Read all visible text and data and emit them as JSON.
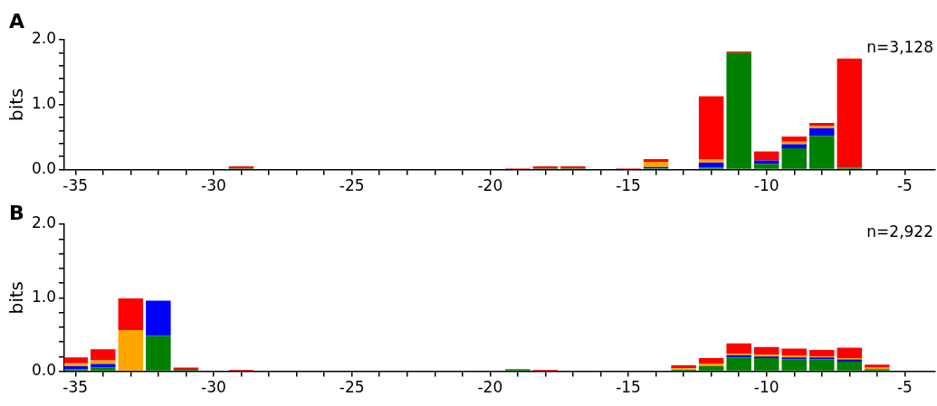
{
  "chart_data": [
    {
      "type": "bar",
      "title": "A",
      "ylabel": "bits",
      "stacked": true,
      "annotations": [
        "n=3,128"
      ],
      "x": [
        -35,
        -34,
        -33,
        -32,
        -31,
        -30,
        -29,
        -28,
        -27,
        -26,
        -25,
        -24,
        -23,
        -22,
        -21,
        -20,
        -19,
        -18,
        -17,
        -16,
        -15,
        -14,
        -13,
        -12,
        -11,
        -10,
        -9,
        -8,
        -7,
        -6,
        -5
      ],
      "xlim": [
        -35.4,
        -3.9
      ],
      "ylim": [
        0,
        2
      ],
      "xticks": [
        -35,
        {
          "value": -34,
          "label": null
        },
        {
          "value": -33,
          "label": null
        },
        {
          "value": -32,
          "label": null
        },
        {
          "value": -31,
          "label": null
        },
        -30,
        {
          "value": -29,
          "label": null
        },
        {
          "value": -28,
          "label": null
        },
        {
          "value": -27,
          "label": null
        },
        {
          "value": -26,
          "label": null
        },
        -25,
        {
          "value": -24,
          "label": null
        },
        {
          "value": -23,
          "label": null
        },
        {
          "value": -22,
          "label": null
        },
        {
          "value": -21,
          "label": null
        },
        -20,
        {
          "value": -19,
          "label": null
        },
        {
          "value": -18,
          "label": null
        },
        {
          "value": -17,
          "label": null
        },
        {
          "value": -16,
          "label": null
        },
        -15,
        {
          "value": -14,
          "label": null
        },
        {
          "value": -13,
          "label": null
        },
        {
          "value": -12,
          "label": null
        },
        {
          "value": -11,
          "label": null
        },
        -10,
        {
          "value": -9,
          "label": null
        },
        {
          "value": -8,
          "label": null
        },
        {
          "value": -7,
          "label": null
        },
        {
          "value": -6,
          "label": null
        },
        -5
      ],
      "yticks": [
        {
          "value": 0,
          "label": "0.0"
        },
        {
          "value": 0.2,
          "label": null
        },
        {
          "value": 0.4,
          "label": null
        },
        {
          "value": 0.6,
          "label": null
        },
        {
          "value": 0.8,
          "label": null
        },
        {
          "value": 1,
          "label": "1.0"
        },
        {
          "value": 1.2,
          "label": null
        },
        {
          "value": 1.4,
          "label": null
        },
        {
          "value": 1.6,
          "label": null
        },
        {
          "value": 1.8,
          "label": null
        },
        {
          "value": 2,
          "label": "2.0"
        }
      ],
      "series": [
        {
          "color": "#008000",
          "values": [
            0,
            0,
            0,
            0,
            0,
            0,
            0.02,
            0,
            0,
            0,
            0,
            0,
            0,
            0,
            0,
            0,
            0,
            0.02,
            0.02,
            0,
            0,
            0.02,
            0,
            0.03,
            1.8,
            0.09,
            0.33,
            0.52,
            0.03,
            0,
            0
          ]
        },
        {
          "color": "#0000ff",
          "values": [
            0,
            0,
            0,
            0,
            0,
            0,
            0,
            0,
            0,
            0,
            0,
            0,
            0,
            0,
            0,
            0,
            0,
            0,
            0,
            0,
            0,
            0.02,
            0,
            0.08,
            0,
            0.05,
            0.06,
            0.12,
            0,
            0,
            0
          ]
        },
        {
          "color": "#ffa500",
          "values": [
            0,
            0,
            0,
            0,
            0,
            0,
            0,
            0,
            0,
            0,
            0,
            0,
            0,
            0,
            0,
            0,
            0,
            0,
            0,
            0,
            0,
            0.08,
            0,
            0.05,
            0,
            0,
            0.04,
            0.03,
            0,
            0,
            0
          ]
        },
        {
          "color": "#ff0000",
          "values": [
            0,
            0,
            0,
            0,
            0,
            0,
            0.03,
            0,
            0,
            0,
            0,
            0,
            0,
            0,
            0,
            0,
            0.02,
            0.03,
            0.03,
            0,
            0.02,
            0.04,
            0,
            0.97,
            0.02,
            0.14,
            0.08,
            0.05,
            1.68,
            0,
            0
          ]
        }
      ]
    },
    {
      "type": "bar",
      "title": "B",
      "ylabel": "bits",
      "stacked": true,
      "annotations": [
        "n=2,922"
      ],
      "x": [
        -35,
        -34,
        -33,
        -32,
        -31,
        -30,
        -29,
        -28,
        -27,
        -26,
        -25,
        -24,
        -23,
        -22,
        -21,
        -20,
        -19,
        -18,
        -17,
        -16,
        -15,
        -14,
        -13,
        -12,
        -11,
        -10,
        -9,
        -8,
        -7,
        -6,
        -5
      ],
      "xlim": [
        -35.4,
        -3.9
      ],
      "ylim": [
        0,
        2
      ],
      "xticks": [
        -35,
        {
          "value": -34,
          "label": null
        },
        {
          "value": -33,
          "label": null
        },
        {
          "value": -32,
          "label": null
        },
        {
          "value": -31,
          "label": null
        },
        -30,
        {
          "value": -29,
          "label": null
        },
        {
          "value": -28,
          "label": null
        },
        {
          "value": -27,
          "label": null
        },
        {
          "value": -26,
          "label": null
        },
        -25,
        {
          "value": -24,
          "label": null
        },
        {
          "value": -23,
          "label": null
        },
        {
          "value": -22,
          "label": null
        },
        {
          "value": -21,
          "label": null
        },
        -20,
        {
          "value": -19,
          "label": null
        },
        {
          "value": -18,
          "label": null
        },
        {
          "value": -17,
          "label": null
        },
        {
          "value": -16,
          "label": null
        },
        -15,
        {
          "value": -14,
          "label": null
        },
        {
          "value": -13,
          "label": null
        },
        {
          "value": -12,
          "label": null
        },
        {
          "value": -11,
          "label": null
        },
        -10,
        {
          "value": -9,
          "label": null
        },
        {
          "value": -8,
          "label": null
        },
        {
          "value": -7,
          "label": null
        },
        {
          "value": -6,
          "label": null
        },
        -5
      ],
      "yticks": [
        {
          "value": 0,
          "label": "0.0"
        },
        {
          "value": 0.2,
          "label": null
        },
        {
          "value": 0.4,
          "label": null
        },
        {
          "value": 0.6,
          "label": null
        },
        {
          "value": 0.8,
          "label": null
        },
        {
          "value": 1,
          "label": "1.0"
        },
        {
          "value": 1.2,
          "label": null
        },
        {
          "value": 1.4,
          "label": null
        },
        {
          "value": 1.6,
          "label": null
        },
        {
          "value": 1.8,
          "label": null
        },
        {
          "value": 2,
          "label": "2.0"
        }
      ],
      "series": [
        {
          "color": "#008000",
          "values": [
            0.03,
            0.05,
            0,
            0.48,
            0.02,
            0,
            0,
            0,
            0,
            0,
            0,
            0,
            0,
            0,
            0,
            0,
            0.02,
            0,
            0,
            0,
            0,
            0,
            0.02,
            0.07,
            0.19,
            0.18,
            0.16,
            0.16,
            0.13,
            0.03,
            0
          ]
        },
        {
          "color": "#0000ff",
          "values": [
            0.04,
            0.05,
            0,
            0.48,
            0.01,
            0,
            0,
            0,
            0,
            0,
            0,
            0,
            0,
            0,
            0,
            0,
            0,
            0,
            0,
            0,
            0,
            0,
            0,
            0,
            0.03,
            0.02,
            0.03,
            0.03,
            0.03,
            0,
            0
          ]
        },
        {
          "color": "#ffa500",
          "values": [
            0.04,
            0.05,
            0.56,
            0,
            0,
            0,
            0,
            0,
            0,
            0,
            0,
            0,
            0,
            0,
            0,
            0,
            0,
            0,
            0,
            0,
            0,
            0,
            0.02,
            0.03,
            0.02,
            0.03,
            0.02,
            0.01,
            0.02,
            0.02,
            0
          ]
        },
        {
          "color": "#ff0000",
          "values": [
            0.08,
            0.15,
            0.43,
            0,
            0.02,
            0,
            0.02,
            0,
            0,
            0,
            0,
            0,
            0,
            0,
            0,
            0,
            0.01,
            0.02,
            0,
            0,
            0,
            0,
            0.04,
            0.08,
            0.14,
            0.1,
            0.1,
            0.09,
            0.14,
            0.04,
            0
          ]
        }
      ]
    }
  ]
}
